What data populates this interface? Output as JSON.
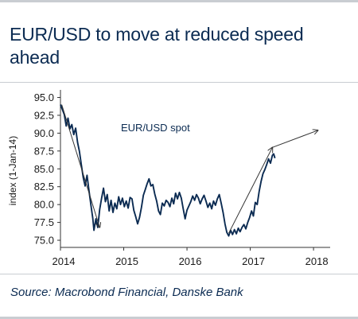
{
  "title": "EUR/USD to move at reduced speed ahead",
  "source": "Source: Macrobond Financial, Danske Bank",
  "colors": {
    "series": "#0b2b52",
    "arrow": "#333333",
    "text": "#0b2b52",
    "divider": "#c9cdd2"
  },
  "chart_data": {
    "type": "line",
    "ylabel": "index (1-Jan-14)",
    "ylim": [
      74,
      95.5
    ],
    "y_ticks": [
      "95.0",
      "92.5",
      "90.0",
      "87.5",
      "85.0",
      "82.5",
      "80.0",
      "77.5",
      "75.0"
    ],
    "x_ticks": [
      "2014",
      "2015",
      "2016",
      "2017",
      "2018"
    ],
    "xlim": [
      2014.0,
      2018.2
    ],
    "grid": false,
    "series": [
      {
        "name": "EUR/USD spot",
        "points": [
          [
            2014.0,
            94.0
          ],
          [
            2014.03,
            93.3
          ],
          [
            2014.06,
            92.6
          ],
          [
            2014.09,
            91.0
          ],
          [
            2014.12,
            92.1
          ],
          [
            2014.15,
            90.6
          ],
          [
            2014.18,
            91.2
          ],
          [
            2014.21,
            89.8
          ],
          [
            2014.24,
            90.7
          ],
          [
            2014.27,
            88.7
          ],
          [
            2014.3,
            87.4
          ],
          [
            2014.33,
            85.6
          ],
          [
            2014.36,
            83.8
          ],
          [
            2014.39,
            82.6
          ],
          [
            2014.42,
            84.1
          ],
          [
            2014.45,
            82.0
          ],
          [
            2014.48,
            80.0
          ],
          [
            2014.51,
            78.1
          ],
          [
            2014.53,
            76.4
          ],
          [
            2014.56,
            78.0
          ],
          [
            2014.59,
            76.8
          ],
          [
            2014.62,
            79.3
          ],
          [
            2014.65,
            80.9
          ],
          [
            2014.68,
            82.3
          ],
          [
            2014.71,
            80.4
          ],
          [
            2014.74,
            81.4
          ],
          [
            2014.77,
            79.1
          ],
          [
            2014.8,
            80.6
          ],
          [
            2014.83,
            78.9
          ],
          [
            2014.86,
            80.2
          ],
          [
            2014.89,
            79.4
          ],
          [
            2014.92,
            81.1
          ],
          [
            2014.95,
            80.0
          ],
          [
            2014.98,
            80.9
          ],
          [
            2015.01,
            79.7
          ],
          [
            2015.04,
            80.5
          ],
          [
            2015.07,
            79.5
          ],
          [
            2015.1,
            81.0
          ],
          [
            2015.13,
            80.8
          ],
          [
            2015.16,
            79.2
          ],
          [
            2015.19,
            78.3
          ],
          [
            2015.22,
            77.3
          ],
          [
            2015.25,
            78.2
          ],
          [
            2015.28,
            79.6
          ],
          [
            2015.31,
            81.3
          ],
          [
            2015.34,
            82.1
          ],
          [
            2015.37,
            82.9
          ],
          [
            2015.4,
            83.6
          ],
          [
            2015.43,
            82.6
          ],
          [
            2015.46,
            82.8
          ],
          [
            2015.49,
            81.5
          ],
          [
            2015.52,
            80.5
          ],
          [
            2015.55,
            79.1
          ],
          [
            2015.58,
            78.6
          ],
          [
            2015.61,
            80.2
          ],
          [
            2015.64,
            79.8
          ],
          [
            2015.67,
            80.6
          ],
          [
            2015.7,
            80.3
          ],
          [
            2015.73,
            79.7
          ],
          [
            2015.76,
            80.9
          ],
          [
            2015.79,
            80.1
          ],
          [
            2015.82,
            81.6
          ],
          [
            2015.85,
            80.8
          ],
          [
            2015.88,
            81.7
          ],
          [
            2015.91,
            80.9
          ],
          [
            2015.94,
            79.4
          ],
          [
            2015.97,
            78.0
          ],
          [
            2016.0,
            79.2
          ],
          [
            2016.03,
            79.8
          ],
          [
            2016.06,
            80.4
          ],
          [
            2016.09,
            81.2
          ],
          [
            2016.12,
            80.6
          ],
          [
            2016.15,
            81.4
          ],
          [
            2016.18,
            80.9
          ],
          [
            2016.21,
            80.1
          ],
          [
            2016.24,
            80.8
          ],
          [
            2016.27,
            81.3
          ],
          [
            2016.3,
            80.5
          ],
          [
            2016.33,
            79.6
          ],
          [
            2016.36,
            80.2
          ],
          [
            2016.39,
            79.4
          ],
          [
            2016.42,
            80.5
          ],
          [
            2016.45,
            79.9
          ],
          [
            2016.48,
            80.8
          ],
          [
            2016.51,
            81.4
          ],
          [
            2016.54,
            80.2
          ],
          [
            2016.57,
            78.9
          ],
          [
            2016.6,
            77.3
          ],
          [
            2016.63,
            76.1
          ],
          [
            2016.66,
            75.6
          ],
          [
            2016.69,
            76.4
          ],
          [
            2016.72,
            75.8
          ],
          [
            2016.75,
            76.5
          ],
          [
            2016.78,
            75.9
          ],
          [
            2016.81,
            76.7
          ],
          [
            2016.84,
            76.2
          ],
          [
            2016.87,
            76.8
          ],
          [
            2016.9,
            77.2
          ],
          [
            2016.93,
            76.6
          ],
          [
            2016.96,
            77.5
          ],
          [
            2016.99,
            78.2
          ],
          [
            2017.02,
            79.1
          ],
          [
            2017.05,
            78.4
          ],
          [
            2017.08,
            80.3
          ],
          [
            2017.11,
            80.0
          ],
          [
            2017.14,
            81.8
          ],
          [
            2017.17,
            83.2
          ],
          [
            2017.2,
            84.3
          ],
          [
            2017.23,
            84.9
          ],
          [
            2017.26,
            85.6
          ],
          [
            2017.29,
            86.4
          ],
          [
            2017.32,
            85.8
          ],
          [
            2017.35,
            86.9
          ],
          [
            2017.37,
            87.1
          ],
          [
            2017.39,
            86.5
          ]
        ]
      }
    ],
    "annotations": [
      {
        "type": "arrow",
        "from": [
          2014.02,
          94.0
        ],
        "to": [
          2014.62,
          76.8
        ]
      },
      {
        "type": "arrow",
        "from": [
          2016.66,
          76.0
        ],
        "to": [
          2017.35,
          88.0
        ]
      },
      {
        "type": "arrow",
        "from": [
          2017.35,
          88.0
        ],
        "to": [
          2018.07,
          90.4
        ]
      }
    ]
  }
}
